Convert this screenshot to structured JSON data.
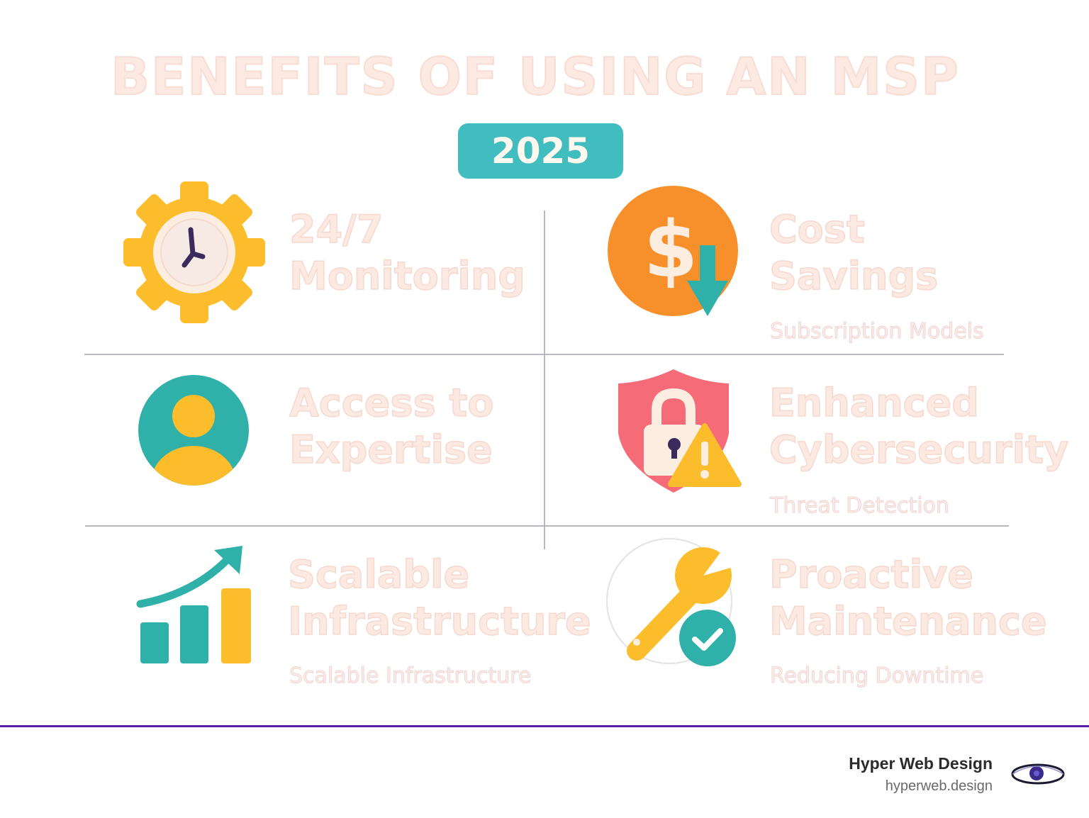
{
  "header": {
    "title": "BENEFITS OF USING AN MSP",
    "year": "2025"
  },
  "benefits": [
    {
      "heading_line1": "24/7",
      "heading_line2": "Monitoring",
      "subtitle": "",
      "icon": "gear-clock-icon"
    },
    {
      "heading_line1": "Cost",
      "heading_line2": "Savings",
      "subtitle": "Subscription Models",
      "icon": "dollar-down-arrow-icon"
    },
    {
      "heading_line1": "Access to",
      "heading_line2": "Expertise",
      "subtitle": "",
      "icon": "user-avatar-icon"
    },
    {
      "heading_line1": "Enhanced",
      "heading_line2": "Cybersecurity",
      "subtitle": "Threat Detection",
      "icon": "shield-lock-warning-icon"
    },
    {
      "heading_line1": "Scalable",
      "heading_line2": "Infrastructure",
      "subtitle": "Scalable Infrastructure",
      "icon": "growth-chart-icon"
    },
    {
      "heading_line1": "Proactive",
      "heading_line2": "Maintenance",
      "subtitle": "Reducing Downtime",
      "icon": "wrench-check-icon"
    }
  ],
  "footer": {
    "brand_name": "Hyper Web Design",
    "brand_url": "hyperweb.design",
    "logo_icon": "hyperweb-logo-icon"
  },
  "colors": {
    "teal": "#2fb0a8",
    "yellow": "#fbbd2c",
    "orange": "#f7902b",
    "coral": "#f56b78",
    "cream": "#fbeee0",
    "purple_line": "#5b1fa6",
    "badge": "#41bdc0"
  }
}
